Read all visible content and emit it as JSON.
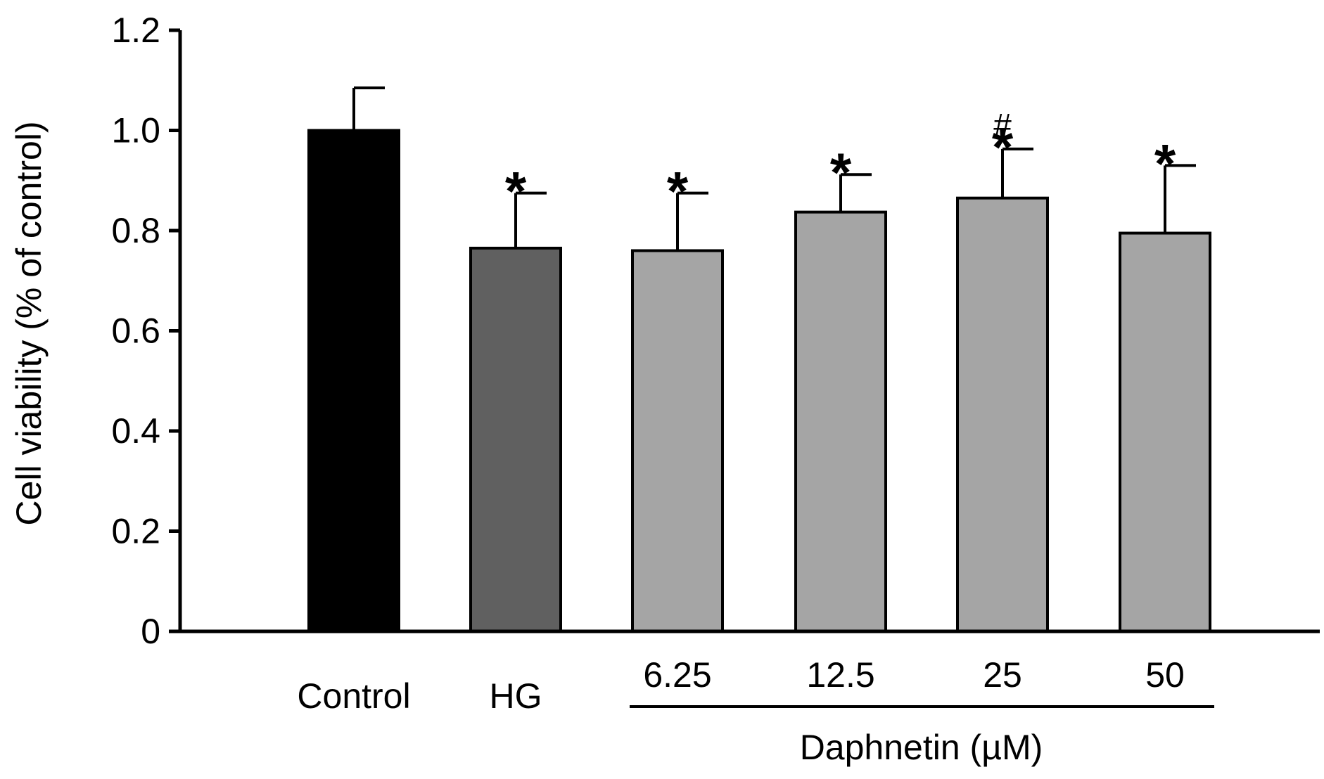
{
  "chart_data": {
    "type": "bar",
    "ylabel": "Cell viability (% of control)",
    "xlabel": "Daphnetin (µM)",
    "ylim": [
      0,
      1.2
    ],
    "yticks": [
      "0",
      "0.2",
      "0.4",
      "0.6",
      "0.8",
      "1.0",
      "1.2"
    ],
    "categories": [
      "Control",
      "HG",
      "6.25",
      "12.5",
      "25",
      "50"
    ],
    "values": [
      1.0,
      0.765,
      0.76,
      0.837,
      0.865,
      0.795
    ],
    "errors": [
      0.085,
      0.11,
      0.115,
      0.075,
      0.098,
      0.135
    ],
    "colors": [
      "#000000",
      "#606060",
      "#a5a5a5",
      "#a5a5a5",
      "#a5a5a5",
      "#a5a5a5"
    ],
    "significance": [
      {
        "category": "HG",
        "marks": [
          "*"
        ]
      },
      {
        "category": "6.25",
        "marks": [
          "*"
        ]
      },
      {
        "category": "12.5",
        "marks": [
          "*"
        ]
      },
      {
        "category": "25",
        "marks": [
          "*",
          "#"
        ]
      },
      {
        "category": "50",
        "marks": [
          "*"
        ]
      }
    ],
    "group_bracket": {
      "label": "Daphnetin (µM)",
      "categories": [
        "6.25",
        "12.5",
        "25",
        "50"
      ]
    }
  }
}
